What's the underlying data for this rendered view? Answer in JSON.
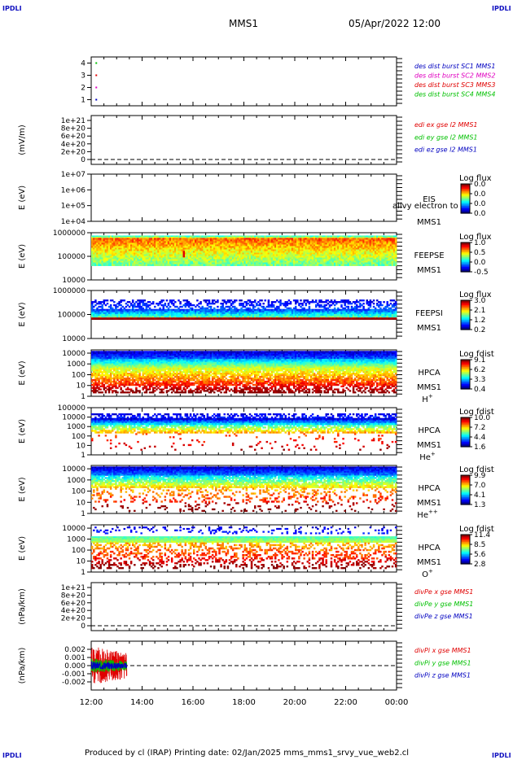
{
  "header": {
    "corner_label": "IPDLI",
    "mission": "MMS1",
    "datetime": "05/Apr/2022 12:00"
  },
  "footer": {
    "text": "Produced by cl (IRAP)   Printing date: 02/Jan/2025   mms_mms1_srvy_vue_web2.cl"
  },
  "colors": {
    "red": "#e00000",
    "green": "#00c000",
    "blue": "#0000c0",
    "magenta": "#e000c0",
    "orange": "#ff8000"
  },
  "chart_data": [
    {
      "type": "scatter",
      "id": "des",
      "ylim": [
        0.5,
        4.5
      ],
      "yticks": [
        "1",
        "2",
        "3",
        "4"
      ],
      "x": [
        "12:00",
        "14:00",
        "16:00",
        "18:00",
        "20:00",
        "22:00",
        "00:00"
      ],
      "series": [
        {
          "name": "des dist burst SC1 MMS1",
          "color": "#0000c0",
          "points": [
            [
              12.2,
              1
            ]
          ]
        },
        {
          "name": "des dist burst SC2 MMS2",
          "color": "#e000c0",
          "points": [
            [
              12.2,
              2
            ]
          ]
        },
        {
          "name": "des dist burst SC3 MMS3",
          "color": "#e00000",
          "points": [
            [
              12.2,
              3
            ]
          ]
        },
        {
          "name": "des dist burst SC4 MMS4",
          "color": "#00c000",
          "points": [
            [
              12.2,
              4
            ]
          ]
        }
      ],
      "legend_labels": [
        "des dist burst SC1 MMS1",
        "des dist burst SC2 MMS2",
        "des dist burst SC3 MMS3",
        "des dist burst SC4 MMS4"
      ]
    },
    {
      "type": "line",
      "id": "edi",
      "ylabel": "(mV/m)",
      "yticks": [
        "0",
        "2e+20",
        "4e+20",
        "6e+20",
        "8e+20",
        "1e+21"
      ],
      "series": [
        {
          "name": "edi ex gse l2 MMS1",
          "values": []
        },
        {
          "name": "edi ey gse l2 MMS1",
          "values": []
        },
        {
          "name": "edi ez gse l2 MMS1",
          "values": []
        }
      ]
    },
    {
      "type": "heatmap",
      "id": "eis",
      "ylabel": "E (eV)",
      "yscale": "log",
      "ylim": [
        10000,
        10000000
      ],
      "yticks": [
        "1e+04",
        "1e+05",
        "1e+06",
        "1e+07"
      ],
      "labels": [
        "EIS",
        "MMS1"
      ],
      "overlay": "allvy electron to",
      "colorbar": {
        "title": "Log flux",
        "ticks": [
          "0.0",
          "0.0",
          "0.0",
          "0.0"
        ]
      }
    },
    {
      "type": "heatmap",
      "id": "feepse",
      "ylabel": "E (eV)",
      "yscale": "log",
      "ylim": [
        10000,
        1000000
      ],
      "yticks": [
        "10000",
        "100000",
        "1000000"
      ],
      "labels": [
        "FEEPSE",
        "MMS1"
      ],
      "colorbar": {
        "title": "Log flux",
        "ticks": [
          "1.0",
          "0.5",
          "0.0",
          "-0.5"
        ]
      }
    },
    {
      "type": "heatmap",
      "id": "feepsi",
      "ylabel": "E (eV)",
      "yscale": "log",
      "ylim": [
        10000,
        1000000
      ],
      "yticks": [
        "10000",
        "100000",
        "1000000"
      ],
      "labels": [
        "FEEPSI",
        "MMS1"
      ],
      "colorbar": {
        "title": "Log flux",
        "ticks": [
          "3.0",
          "2.1",
          "1.2",
          "0.2"
        ]
      }
    },
    {
      "type": "heatmap",
      "id": "hpca_h",
      "ylabel": "E (eV)",
      "yscale": "log",
      "ylim": [
        1,
        20000
      ],
      "yticks": [
        "1",
        "10",
        "100",
        "1000",
        "10000"
      ],
      "labels": [
        "HPCA",
        "MMS1"
      ],
      "species": "H",
      "charge": "+",
      "colorbar": {
        "title": "Log fdist",
        "ticks": [
          "9.1",
          "6.2",
          "3.3",
          "0.4"
        ]
      }
    },
    {
      "type": "heatmap",
      "id": "hpca_he",
      "ylabel": "E (eV)",
      "yscale": "log",
      "ylim": [
        1,
        100000
      ],
      "yticks": [
        "1",
        "10",
        "100",
        "1000",
        "10000",
        "100000"
      ],
      "labels": [
        "HPCA",
        "MMS1"
      ],
      "species": "He",
      "charge": "+",
      "colorbar": {
        "title": "Log fdist",
        "ticks": [
          "10.0",
          "7.2",
          "4.4",
          "1.6"
        ]
      }
    },
    {
      "type": "heatmap",
      "id": "hpca_he2",
      "ylabel": "E (eV)",
      "yscale": "log",
      "ylim": [
        1,
        20000
      ],
      "yticks": [
        "1",
        "10",
        "100",
        "1000",
        "10000"
      ],
      "labels": [
        "HPCA",
        "MMS1"
      ],
      "species": "He",
      "charge": "++",
      "colorbar": {
        "title": "Log fdist",
        "ticks": [
          "9.9",
          "7.0",
          "4.1",
          "1.3"
        ]
      }
    },
    {
      "type": "heatmap",
      "id": "hpca_o",
      "ylabel": "E (eV)",
      "yscale": "log",
      "ylim": [
        1,
        20000
      ],
      "yticks": [
        "1",
        "10",
        "100",
        "1000",
        "10000"
      ],
      "labels": [
        "HPCA",
        "MMS1"
      ],
      "species": "O",
      "charge": "+",
      "colorbar": {
        "title": "Log fdist",
        "ticks": [
          "11.4",
          "8.5",
          "5.6",
          "2.8"
        ]
      }
    },
    {
      "type": "line",
      "id": "divpe",
      "ylabel": "(nPa/km)",
      "yticks": [
        "0",
        "2e+20",
        "4e+20",
        "6e+20",
        "8e+20",
        "1e+21"
      ],
      "series": [
        {
          "name": "divPe x gse MMS1",
          "values": []
        },
        {
          "name": "divPe y gse MMS1",
          "values": []
        },
        {
          "name": "divPe z gse MMS1",
          "values": []
        }
      ]
    },
    {
      "type": "line",
      "id": "divpi",
      "ylabel": "(nPa/km)",
      "ylim": [
        -0.003,
        0.003
      ],
      "yticks": [
        "-0.002",
        "-0.001",
        "0.000",
        "0.001",
        "0.002"
      ],
      "data_range_hours": [
        12.0,
        13.4
      ],
      "series": [
        {
          "name": "divPi x gse MMS1",
          "color": "#e00000",
          "amplitude": 0.0024
        },
        {
          "name": "divPi y gse MMS1",
          "color": "#00c000",
          "amplitude": 0.0009
        },
        {
          "name": "divPi z gse MMS1",
          "color": "#0000c0",
          "amplitude": 0.0005
        }
      ]
    }
  ],
  "xaxis": {
    "ticks": [
      "12:00",
      "14:00",
      "16:00",
      "18:00",
      "20:00",
      "22:00",
      "00:00"
    ]
  }
}
